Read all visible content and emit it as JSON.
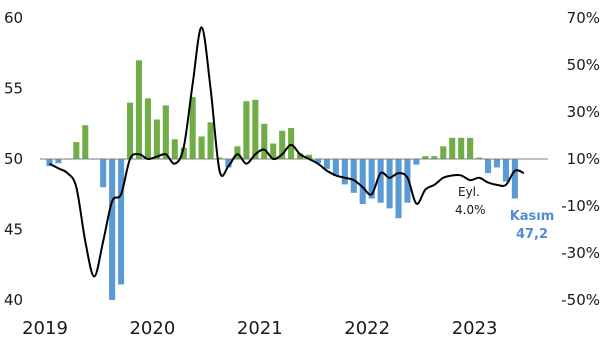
{
  "chart_data": {
    "type": "bar",
    "title": "",
    "xlabel": "",
    "ylabel_left": "",
    "ylabel_right": "",
    "left_axis": {
      "ylim": [
        40,
        60
      ],
      "ticks": [
        40,
        45,
        50,
        55,
        60
      ],
      "tick_labels": [
        "40",
        "45",
        "50",
        "55",
        "60"
      ]
    },
    "right_axis": {
      "ylim": [
        -50,
        70
      ],
      "ticks": [
        -50,
        -30,
        -10,
        10,
        30,
        50,
        70
      ],
      "tick_labels": [
        "-50%",
        "-30%",
        "-10%",
        "10%",
        "30%",
        "50%",
        "70%"
      ]
    },
    "x_ticks": [
      "2019",
      "2020",
      "2021",
      "2022",
      "2023"
    ],
    "grid": false,
    "legend": "none",
    "colors": {
      "above_50": "#70ad47",
      "below_50": "#5b9bd5",
      "line": "#000000",
      "baseline": "#7f7f7f",
      "highlight_text": "#4f8fd1"
    },
    "series": [
      {
        "axis": "left",
        "type": "bar",
        "baseline": 50,
        "start": "2019-01",
        "values": [
          49.5,
          49.7,
          50.0,
          51.2,
          52.4,
          50.0,
          48.0,
          40.0,
          41.1,
          54.0,
          57.0,
          54.3,
          52.8,
          53.8,
          51.4,
          50.8,
          54.4,
          51.6,
          52.6,
          50.1,
          49.4,
          50.9,
          54.1,
          54.2,
          52.5,
          51.1,
          52.0,
          52.2,
          50.4,
          50.3,
          49.7,
          49.3,
          48.8,
          48.2,
          47.6,
          46.8,
          47.2,
          46.9,
          46.5,
          45.8,
          46.9,
          49.6,
          50.2,
          50.2,
          50.9,
          51.5,
          51.5,
          51.5,
          50.1,
          49.0,
          49.4,
          48.4,
          47.2
        ]
      },
      {
        "axis": "right",
        "type": "line",
        "start": "2019-01",
        "values": [
          8,
          6,
          4,
          -2,
          -25,
          -40,
          -25,
          -8,
          -5,
          10,
          12,
          10,
          11,
          12,
          8,
          15,
          42,
          66,
          40,
          5,
          7,
          12,
          8,
          12,
          14,
          10,
          12,
          16,
          12,
          10,
          8,
          5,
          3,
          2,
          1,
          -2,
          -5,
          4,
          2,
          4,
          2,
          -9,
          -3,
          -1,
          2,
          3,
          3,
          1,
          2,
          0,
          -1,
          -1,
          5,
          4
        ]
      }
    ],
    "annotations": [
      {
        "label": "Eyl.",
        "value": "4.0%"
      },
      {
        "label": "Kasım",
        "value": "47,2"
      }
    ]
  }
}
